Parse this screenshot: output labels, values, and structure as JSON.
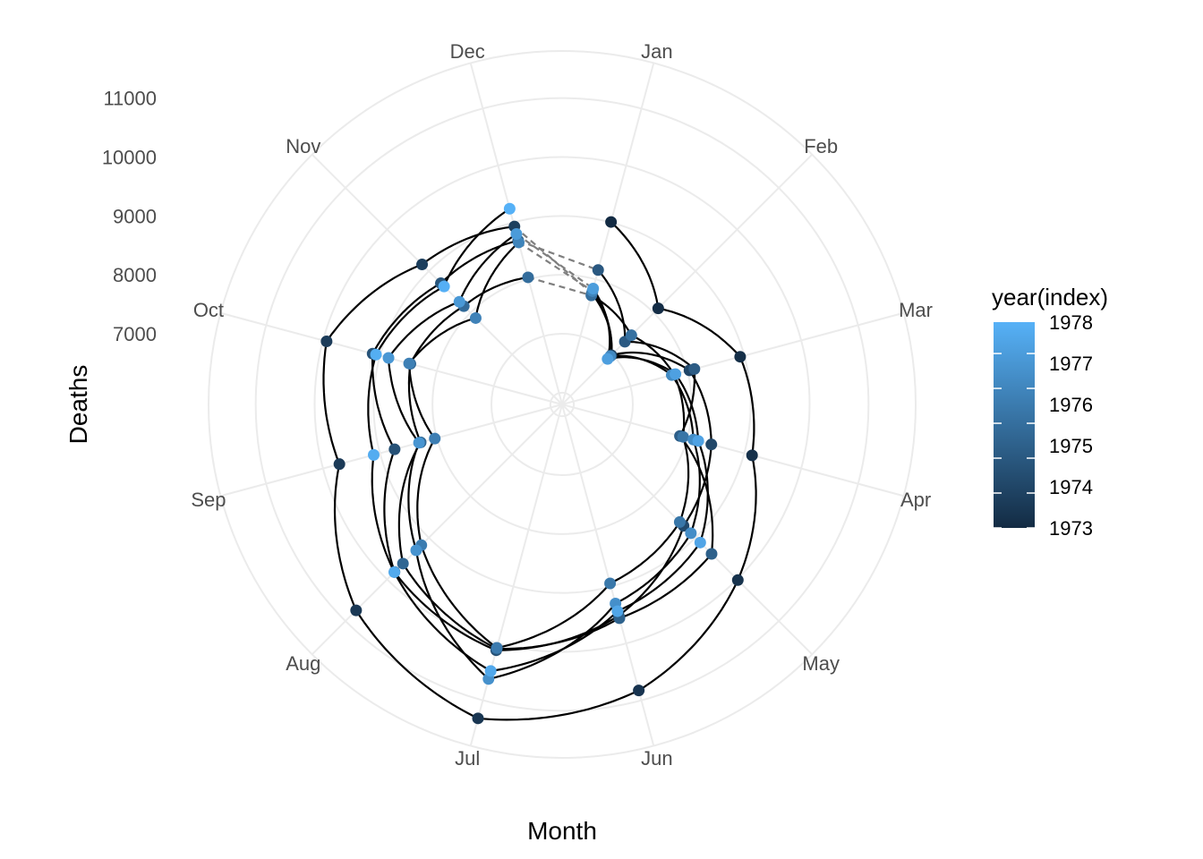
{
  "chart_data": {
    "type": "line",
    "coord": "polar",
    "title": "",
    "xlabel": "Month",
    "ylabel": "Deaths",
    "grid": true,
    "legend_position": "right",
    "legend": {
      "title": "year(index)",
      "labels": [
        "1978",
        "1977",
        "1976",
        "1975",
        "1974",
        "1973"
      ],
      "color_low": "#132B43",
      "color_high": "#56B1F7",
      "range": [
        1973,
        1978.9
      ]
    },
    "categories": [
      "Jan",
      "Feb",
      "Mar",
      "Apr",
      "May",
      "Jun",
      "Jul",
      "Aug",
      "Sep",
      "Oct",
      "Nov",
      "Dec"
    ],
    "radial_ticks": [
      7000,
      8000,
      9000,
      10000,
      11000
    ],
    "radial_range": [
      5800,
      11800
    ],
    "series": [
      {
        "year": 1973,
        "values": [
          9007,
          8106,
          8928,
          9137,
          10017,
          10826,
          11317,
          10744,
          9713,
          9938,
          9161,
          8927
        ]
      },
      {
        "year": 1974,
        "values": [
          7750,
          6981,
          8038,
          8422,
          8714,
          9512,
          10120,
          9823,
          8743,
          9129,
          8710,
          8680
        ]
      },
      {
        "year": 1975,
        "values": [
          8162,
          7306,
          8124,
          7870,
          9387,
          9556,
          10093,
          9620,
          8285,
          8466,
          8160,
          8034
        ]
      },
      {
        "year": 1976,
        "values": [
          7717,
          7461,
          7767,
          7925,
          8623,
          8945,
          10078,
          9179,
          8037,
          8488,
          7874,
          8647
        ]
      },
      {
        "year": 1977,
        "values": [
          7792,
          6957,
          7726,
          8106,
          8890,
          9299,
          10625,
          9302,
          8314,
          8850,
          8265,
          8796
        ]
      },
      {
        "year": 1978,
        "values": [
          7836,
          6892,
          7791,
          8192,
          9115,
          9434,
          10484,
          9827,
          9110,
          9070,
          8633,
          9240
        ]
      }
    ]
  }
}
